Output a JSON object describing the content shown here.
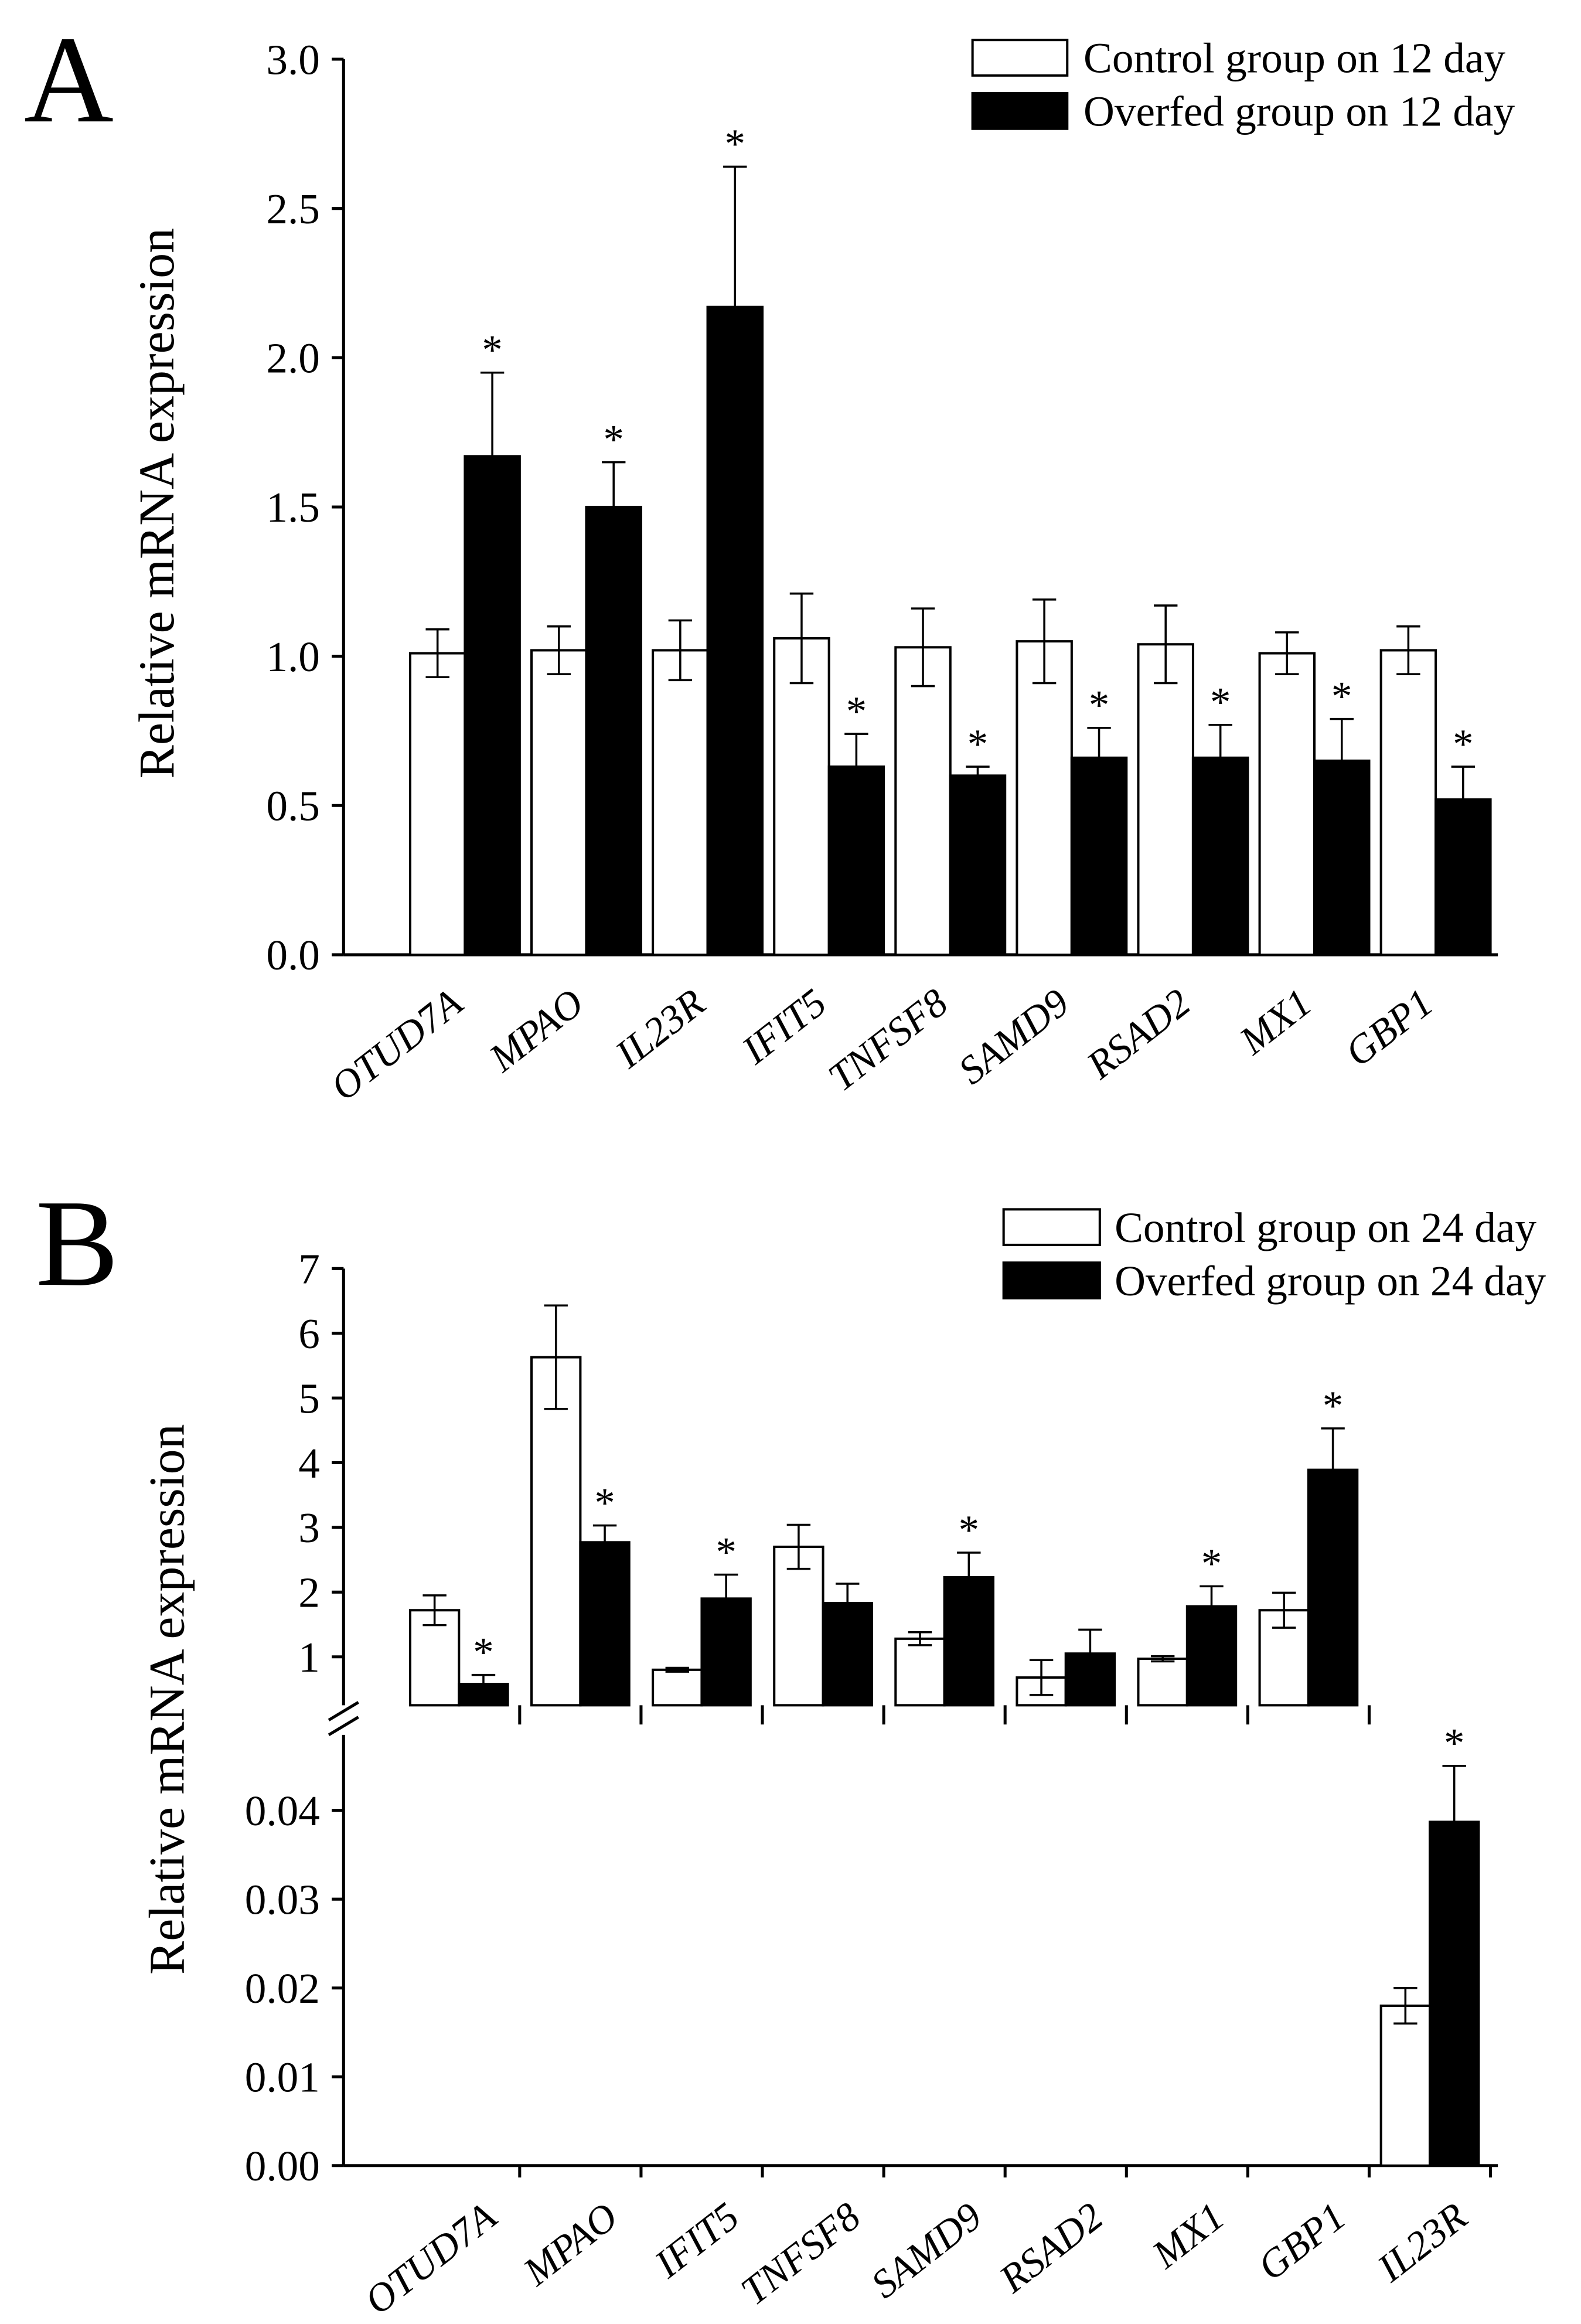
{
  "chart_data": [
    {
      "panel": "A",
      "type": "bar",
      "ylabel": "Relative mRNA expression",
      "grid": false,
      "legend": "top-right",
      "categories": [
        "OTUD7A",
        "MPAO",
        "IL23R",
        "IFIT5",
        "TNFSF8",
        "SAMD9",
        "RSAD2",
        "MX1",
        "GBP1"
      ],
      "y_axis": {
        "main": {
          "ylim": [
            0,
            3.0
          ],
          "ticks": [
            "0.0",
            "0.5",
            "1.0",
            "1.5",
            "2.0",
            "2.5",
            "3.0"
          ]
        }
      },
      "significance_marker": "*",
      "series": [
        {
          "name": "Control group on 12 day",
          "color": "#ffffff",
          "values": [
            1.01,
            1.02,
            1.02,
            1.06,
            1.03,
            1.05,
            1.04,
            1.01,
            1.02
          ],
          "errors": [
            0.08,
            0.08,
            0.1,
            0.15,
            0.13,
            0.14,
            0.13,
            0.07,
            0.08
          ],
          "significant": [
            false,
            false,
            false,
            false,
            false,
            false,
            false,
            false,
            false
          ]
        },
        {
          "name": "Overfed group on 12 day",
          "color": "#000000",
          "values": [
            1.67,
            1.5,
            2.17,
            0.63,
            0.6,
            0.66,
            0.66,
            0.65,
            0.52
          ],
          "errors": [
            0.28,
            0.15,
            0.47,
            0.11,
            0.03,
            0.1,
            0.11,
            0.14,
            0.11
          ],
          "significant": [
            true,
            true,
            true,
            true,
            true,
            true,
            true,
            true,
            true
          ]
        }
      ]
    },
    {
      "panel": "B",
      "type": "bar",
      "ylabel": "Relative mRNA expression",
      "grid": false,
      "legend": "top-right",
      "broken_axis": true,
      "categories": [
        "OTUD7A",
        "MPAO",
        "IFIT5",
        "TNFSF8",
        "SAMD9",
        "RSAD2",
        "MX1",
        "GBP1",
        "IL23R"
      ],
      "lower_segment_categories": [
        "IL23R"
      ],
      "y_axis": {
        "upper": {
          "ylim": [
            0,
            7
          ],
          "ticks": [
            "1",
            "2",
            "3",
            "4",
            "5",
            "6",
            "7"
          ]
        },
        "lower": {
          "ylim": [
            0,
            0.048
          ],
          "ticks": [
            "0.00",
            "0.01",
            "0.02",
            "0.03",
            "0.04"
          ]
        }
      },
      "significance_marker": "*",
      "series": [
        {
          "name": "Control group on 24 day",
          "color": "#ffffff",
          "values": [
            1.72,
            5.63,
            0.8,
            2.7,
            1.28,
            0.68,
            0.97,
            1.72,
            0.018
          ],
          "errors": [
            0.23,
            0.8,
            0.03,
            0.34,
            0.1,
            0.27,
            0.04,
            0.27,
            0.002
          ],
          "significant": [
            false,
            false,
            false,
            false,
            false,
            false,
            false,
            false,
            false
          ]
        },
        {
          "name": "Overfed group on 24 day",
          "color": "#000000",
          "values": [
            0.58,
            2.77,
            1.9,
            1.83,
            2.23,
            1.05,
            1.78,
            3.89,
            0.0387
          ],
          "errors": [
            0.14,
            0.26,
            0.37,
            0.3,
            0.38,
            0.37,
            0.31,
            0.64,
            0.0063
          ],
          "significant": [
            true,
            true,
            true,
            false,
            true,
            false,
            true,
            true,
            true
          ]
        }
      ]
    }
  ]
}
